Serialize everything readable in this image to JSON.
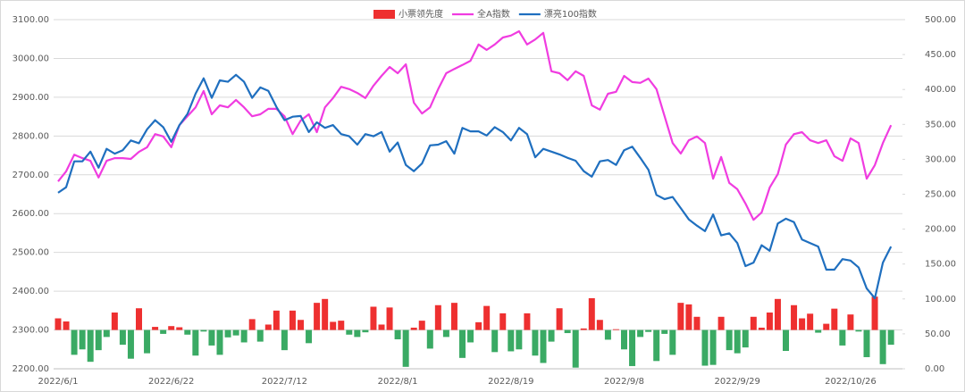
{
  "chart_data": {
    "type": "combo",
    "categories": [
      "2022/6/1",
      null,
      null,
      null,
      null,
      null,
      null,
      null,
      null,
      null,
      null,
      null,
      null,
      null,
      "2022/6/22",
      null,
      null,
      null,
      null,
      null,
      null,
      null,
      null,
      null,
      null,
      null,
      null,
      null,
      "2022/7/12",
      null,
      null,
      null,
      null,
      null,
      null,
      null,
      null,
      null,
      null,
      null,
      null,
      null,
      "2022/8/1",
      null,
      null,
      null,
      null,
      null,
      null,
      null,
      null,
      null,
      null,
      null,
      null,
      null,
      "2022/8/19",
      null,
      null,
      null,
      null,
      null,
      null,
      null,
      null,
      null,
      null,
      null,
      null,
      null,
      "2022/9/8",
      null,
      null,
      null,
      null,
      null,
      null,
      null,
      null,
      null,
      null,
      null,
      null,
      null,
      "2022/9/29",
      null,
      null,
      null,
      null,
      null,
      null,
      null,
      null,
      null,
      null,
      null,
      null,
      null,
      "2022/10/26",
      null,
      null,
      null,
      null,
      null
    ],
    "series": [
      {
        "name": "小票领先度",
        "type": "bar",
        "axis": "y",
        "color": "#ee3030",
        "negative_color": "#3aaa64",
        "values": [
          2330,
          2322,
          2236,
          2250,
          2218,
          2248,
          2282,
          2345,
          2262,
          2226,
          2356,
          2240,
          2308,
          2290,
          2310,
          2307,
          2288,
          2234,
          2296,
          2260,
          2236,
          2281,
          2286,
          2268,
          2328,
          2270,
          2314,
          2350,
          2248,
          2350,
          2326,
          2266,
          2370,
          2380,
          2321,
          2324,
          2288,
          2282,
          2294,
          2360,
          2314,
          2358,
          2276,
          2205,
          2306,
          2324,
          2252,
          2364,
          2282,
          2370,
          2228,
          2268,
          2320,
          2362,
          2243,
          2343,
          2245,
          2250,
          2343,
          2234,
          2215,
          2270,
          2356,
          2292,
          2203,
          2304,
          2382,
          2326,
          2275,
          2302,
          2250,
          2207,
          2282,
          2295,
          2220,
          2290,
          2236,
          2370,
          2366,
          2334,
          2208,
          2210,
          2334,
          2248,
          2240,
          2255,
          2334,
          2306,
          2345,
          2380,
          2246,
          2364,
          2330,
          2342,
          2293,
          2316,
          2355,
          2260,
          2340,
          2296,
          2230,
          2386,
          2212,
          2262
        ]
      },
      {
        "name": "全A指数",
        "type": "line",
        "axis": "y",
        "color": "#f03ce0",
        "values": [
          2683,
          2709,
          2752,
          2743,
          2736,
          2693,
          2736,
          2743,
          2743,
          2741,
          2759,
          2771,
          2805,
          2799,
          2771,
          2828,
          2851,
          2874,
          2916,
          2856,
          2879,
          2874,
          2893,
          2874,
          2851,
          2856,
          2870,
          2870,
          2851,
          2805,
          2840,
          2856,
          2810,
          2874,
          2898,
          2927,
          2921,
          2911,
          2898,
          2930,
          2955,
          2978,
          2962,
          2985,
          2886,
          2858,
          2874,
          2921,
          2962,
          2973,
          2983,
          2994,
          3036,
          3022,
          3036,
          3054,
          3059,
          3070,
          3036,
          3049,
          3066,
          2967,
          2962,
          2944,
          2967,
          2955,
          2879,
          2868,
          2909,
          2914,
          2955,
          2939,
          2937,
          2948,
          2921,
          2851,
          2782,
          2755,
          2789,
          2799,
          2782,
          2690,
          2746,
          2679,
          2663,
          2626,
          2584,
          2603,
          2667,
          2702,
          2778,
          2805,
          2810,
          2789,
          2782,
          2789,
          2748,
          2736,
          2794,
          2782,
          2690,
          2725,
          2782,
          2828
        ]
      },
      {
        "name": "漂亮100指数",
        "type": "line",
        "axis": "y2",
        "color": "#1f6fbf",
        "values": [
          252,
          260,
          297,
          297,
          311,
          288,
          315,
          308,
          313,
          327,
          323,
          343,
          356,
          346,
          325,
          349,
          365,
          394,
          416,
          388,
          413,
          411,
          421,
          411,
          388,
          403,
          398,
          375,
          356,
          361,
          362,
          339,
          353,
          345,
          349,
          336,
          333,
          321,
          336,
          333,
          339,
          311,
          324,
          292,
          283,
          294,
          320,
          321,
          326,
          308,
          345,
          340,
          340,
          334,
          346,
          339,
          327,
          345,
          336,
          303,
          315,
          311,
          307,
          302,
          298,
          283,
          275,
          297,
          299,
          292,
          313,
          318,
          302,
          285,
          249,
          243,
          246,
          230,
          214,
          205,
          197,
          221,
          191,
          194,
          180,
          147,
          152,
          177,
          169,
          208,
          215,
          210,
          185,
          180,
          175,
          142,
          142,
          157,
          155,
          145,
          115,
          101,
          152,
          175
        ]
      }
    ],
    "ylim": [
      2200,
      3100
    ],
    "yticks": [
      {
        "value": 2200,
        "label": "2200.00"
      },
      {
        "value": 2300,
        "label": "2300.00"
      },
      {
        "value": 2400,
        "label": "2400.00"
      },
      {
        "value": 2500,
        "label": "2500.00"
      },
      {
        "value": 2600,
        "label": "2600.00"
      },
      {
        "value": 2700,
        "label": "2700.00"
      },
      {
        "value": 2800,
        "label": "2800.00"
      },
      {
        "value": 2900,
        "label": "2900.00"
      },
      {
        "value": 3000,
        "label": "3000.00"
      },
      {
        "value": 3100,
        "label": "3100.00"
      }
    ],
    "y2lim": [
      0,
      500
    ],
    "y2ticks": [
      {
        "value": 0,
        "label": "0.00"
      },
      {
        "value": 50,
        "label": "50.00"
      },
      {
        "value": 100,
        "label": "100.00"
      },
      {
        "value": 150,
        "label": "150.00"
      },
      {
        "value": 200,
        "label": "200.00"
      },
      {
        "value": 250,
        "label": "250.00"
      },
      {
        "value": 300,
        "label": "300.00"
      },
      {
        "value": 350,
        "label": "350.00"
      },
      {
        "value": 400,
        "label": "400.00"
      },
      {
        "value": 450,
        "label": "450.00"
      },
      {
        "value": 500,
        "label": "500.00"
      }
    ],
    "grid": true,
    "legend": "top"
  }
}
